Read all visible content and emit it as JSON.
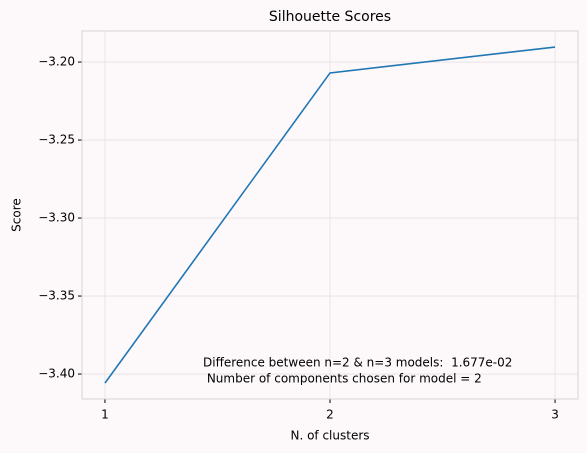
{
  "chart_data": {
    "type": "line",
    "title": "Silhouette Scores",
    "x_label": "N. of clusters",
    "y_label": "Score",
    "x": [
      1,
      2,
      3
    ],
    "series": [
      {
        "name": "Score",
        "color": "#1f77b4",
        "values": [
          -3.4058,
          -3.207,
          -3.1904
        ]
      }
    ],
    "xlim": [
      0.898,
      3.102
    ],
    "xticks": [
      1,
      2,
      3
    ],
    "ylim": [
      -3.416,
      -3.1801
    ],
    "yticks": [
      {
        "value": -3.4,
        "label": "−3.40"
      },
      {
        "value": -3.35,
        "label": "−3.35"
      },
      {
        "value": -3.3,
        "label": "−3.30"
      },
      {
        "value": -3.25,
        "label": "−3.25"
      },
      {
        "value": -3.2,
        "label": "−3.20"
      }
    ],
    "grid": true,
    "annotations": [
      "Difference between n=2 & n=3 models:  1.677e-02",
      " Number of components chosen for model = 2"
    ]
  }
}
